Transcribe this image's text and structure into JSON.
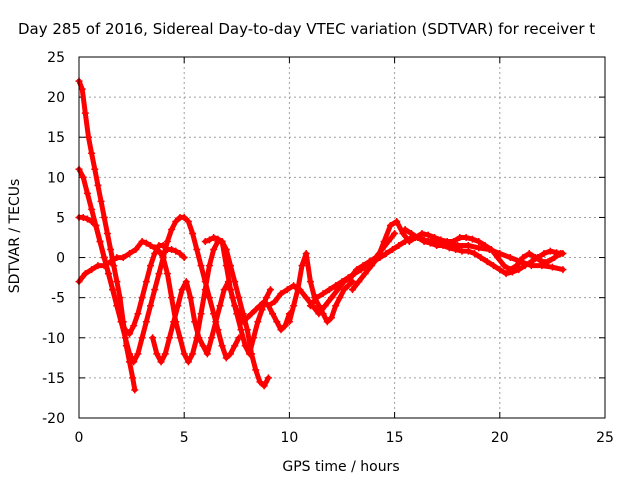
{
  "chart_data": {
    "type": "scatter",
    "title": "Day 285 of 2016, Sidereal Day-to-day VTEC variation (SDTVAR) for receiver t",
    "xlabel": "GPS time / hours",
    "ylabel": "SDTVAR / TECUs",
    "xlim": [
      0,
      25
    ],
    "ylim": [
      -20,
      25
    ],
    "x_ticks": [
      0,
      5,
      10,
      15,
      20,
      25
    ],
    "y_ticks": [
      -20,
      -15,
      -10,
      -5,
      0,
      5,
      10,
      15,
      20,
      25
    ],
    "grid": true,
    "marker": "+",
    "color": "#ff0000",
    "series": [
      {
        "x": [
          0.0,
          0.15,
          0.3,
          0.45,
          0.6,
          0.75,
          0.9,
          1.05,
          1.2,
          1.35,
          1.5,
          1.65,
          1.8,
          1.95,
          2.1,
          2.25,
          2.4,
          2.55,
          2.65
        ],
        "y": [
          22,
          21,
          18,
          15,
          13,
          11,
          9,
          7,
          5,
          3,
          1,
          -1,
          -3,
          -5,
          -8,
          -11,
          -13,
          -15,
          -16.5
        ]
      },
      {
        "x": [
          0.0,
          0.2,
          0.4,
          0.6,
          0.8,
          1.0,
          1.2,
          1.4,
          1.6,
          1.8,
          2.0,
          2.2,
          2.4,
          2.6,
          2.8,
          3.0,
          3.2,
          3.4,
          3.6,
          3.8,
          4.0,
          4.2,
          4.4,
          4.6,
          4.8,
          5.0
        ],
        "y": [
          11,
          10,
          8,
          6,
          4,
          2,
          0,
          -2,
          -4,
          -6,
          -8,
          -9,
          -9.5,
          -8.5,
          -7,
          -5,
          -3,
          -1,
          0.5,
          1.5,
          1.5,
          1,
          1,
          0.8,
          0.5,
          0
        ]
      },
      {
        "x": [
          0.0,
          0.2,
          0.4,
          0.6,
          0.8,
          1.0,
          1.2,
          1.4,
          1.6,
          1.8,
          2.0,
          2.2,
          2.4,
          2.6,
          2.8,
          3.0,
          3.2,
          3.4,
          3.6,
          3.8,
          4.0,
          4.2,
          4.4,
          4.6,
          4.8,
          5.0,
          5.2,
          5.4,
          5.6,
          5.8,
          6.0,
          6.2,
          6.4,
          6.6,
          6.8,
          7.0,
          7.2,
          7.4,
          7.6
        ],
        "y": [
          5,
          5,
          4.8,
          4.5,
          4,
          2,
          0,
          -2,
          -4,
          -6,
          -8,
          -10,
          -12,
          -13,
          -12,
          -10,
          -8,
          -6,
          -4,
          -2,
          0,
          2,
          3.5,
          4.5,
          5,
          5,
          4.5,
          3,
          1,
          -1,
          -3,
          -5,
          -7,
          -9,
          -11,
          -12.5,
          -12,
          -11,
          -10
        ]
      },
      {
        "x": [
          0.0,
          0.3,
          0.6,
          0.9,
          1.2,
          1.5,
          1.8,
          2.1,
          2.4,
          2.7,
          3.0,
          3.2,
          3.4,
          3.6,
          3.8,
          4.0,
          4.2,
          4.4,
          4.6,
          4.8,
          5.0,
          5.2,
          5.4,
          5.6,
          5.8,
          6.0,
          6.2,
          6.4,
          6.6,
          6.8,
          7.0,
          7.2,
          7.4,
          7.6,
          7.8,
          8.0,
          8.2,
          8.4,
          8.6,
          8.8,
          9.0
        ],
        "y": [
          -3,
          -2,
          -1.5,
          -1,
          -1,
          -0.5,
          0,
          0,
          0.5,
          1,
          2,
          1.8,
          1.5,
          1.2,
          0.8,
          0,
          -2,
          -5,
          -8,
          -10,
          -12,
          -13,
          -12,
          -10,
          -7,
          -4,
          -1,
          1,
          2,
          2,
          1,
          -1,
          -3,
          -5,
          -7,
          -9,
          -12,
          -14,
          -15.5,
          -16,
          -15
        ]
      },
      {
        "x": [
          3.5,
          3.7,
          3.9,
          4.1,
          4.3,
          4.5,
          4.7,
          4.9,
          5.1,
          5.3,
          5.5,
          5.7,
          5.9,
          6.1,
          6.3,
          6.5,
          6.7,
          6.9,
          7.1,
          7.3,
          7.5,
          7.7,
          7.9,
          8.1,
          8.3,
          8.5,
          8.7,
          8.9,
          9.1
        ],
        "y": [
          -10,
          -12,
          -13,
          -12,
          -10,
          -8,
          -6,
          -4,
          -3,
          -5,
          -8,
          -10,
          -11,
          -12,
          -10,
          -8,
          -6,
          -4,
          -3,
          -5,
          -7,
          -9,
          -11,
          -12,
          -10,
          -8,
          -6.5,
          -5,
          -4
        ]
      },
      {
        "x": [
          6.0,
          6.2,
          6.4,
          6.6,
          6.8,
          7.0,
          7.2,
          7.4,
          7.6,
          7.8,
          8.0,
          8.2,
          8.4,
          8.6,
          8.8,
          9.0,
          9.2,
          9.4,
          9.6,
          9.8,
          10.0
        ],
        "y": [
          2,
          2.2,
          2.5,
          2.3,
          2,
          -1,
          -4,
          -6,
          -7,
          -8,
          -7.5,
          -7,
          -6.5,
          -6,
          -5.5,
          -6,
          -7,
          -8,
          -9,
          -8.5,
          -7
        ]
      },
      {
        "x": [
          9.0,
          9.3,
          9.6,
          9.9,
          10.2,
          10.5,
          10.8,
          11.1,
          11.4,
          11.7,
          12.0,
          12.3,
          12.6,
          12.9,
          13.2,
          13.5,
          13.8,
          14.1,
          14.4,
          14.7,
          15.0
        ],
        "y": [
          -6,
          -5.5,
          -4.5,
          -4,
          -3.5,
          -4,
          -5,
          -6,
          -7,
          -6,
          -5,
          -4,
          -3,
          -2.5,
          -1.5,
          -1,
          -0.5,
          0,
          1,
          2,
          3
        ]
      },
      {
        "x": [
          10.0,
          10.2,
          10.4,
          10.6,
          10.8,
          11.0,
          11.2,
          11.4,
          11.6,
          11.8,
          12.0,
          12.2,
          12.4,
          12.6,
          12.8,
          13.0
        ],
        "y": [
          -8,
          -6,
          -4,
          -1,
          0.5,
          -3,
          -5,
          -6,
          -7,
          -8,
          -7.5,
          -6,
          -5,
          -4,
          -3.5,
          -3
        ]
      },
      {
        "x": [
          11.0,
          11.3,
          11.6,
          11.9,
          12.2,
          12.5,
          12.8,
          13.1,
          13.4,
          13.7,
          14.0,
          14.3,
          14.6,
          14.9,
          15.2,
          15.5,
          15.8,
          16.1,
          16.4,
          16.7,
          17.0,
          17.5,
          18.0,
          18.5,
          19.0,
          19.5,
          20.0,
          20.5,
          21.0,
          21.5,
          22.0,
          22.5,
          23.0
        ],
        "y": [
          -6,
          -5,
          -4.5,
          -4,
          -3.5,
          -3,
          -2.5,
          -2,
          -1.5,
          -1,
          -0.5,
          0,
          0.5,
          1,
          1.5,
          2,
          2.5,
          2.5,
          2.2,
          2,
          2,
          1.8,
          1.5,
          1.5,
          1.2,
          1,
          0.5,
          0,
          -0.5,
          -1,
          -1,
          -1.2,
          -1.5
        ]
      },
      {
        "x": [
          13.0,
          13.3,
          13.6,
          13.9,
          14.2,
          14.5,
          14.8,
          15.1,
          15.4,
          15.7,
          16.0,
          16.3,
          16.6,
          16.9,
          17.2,
          17.5,
          17.8,
          18.1,
          18.4,
          18.7,
          19.0,
          19.3,
          19.6,
          19.9,
          20.2,
          20.5,
          20.8,
          21.1,
          21.4,
          21.7,
          22.0,
          22.3,
          22.6,
          22.9
        ],
        "y": [
          -4,
          -3,
          -2,
          -1,
          0,
          2,
          4,
          4.5,
          3,
          2,
          2.5,
          3,
          2.8,
          2.5,
          2.2,
          2,
          2,
          2.5,
          2.5,
          2.3,
          2,
          1.5,
          1,
          0,
          -1,
          -1.5,
          -1,
          0,
          0.5,
          0,
          -0.5,
          -0.5,
          0,
          0.5
        ]
      },
      {
        "x": [
          15.5,
          15.8,
          16.1,
          16.4,
          16.7,
          17.0,
          17.3,
          17.6,
          17.9,
          18.2,
          18.5,
          18.8,
          19.1,
          19.4,
          19.7,
          20.0,
          20.3,
          20.6,
          20.9,
          21.2,
          21.5,
          21.8,
          22.1,
          22.4,
          22.7,
          23.0
        ],
        "y": [
          3.5,
          3,
          2.5,
          2,
          1.8,
          1.5,
          1.5,
          1.2,
          1,
          0.8,
          0.8,
          0.5,
          0,
          -0.5,
          -1,
          -1.5,
          -2,
          -1.8,
          -1.5,
          -1,
          -0.5,
          0,
          0.5,
          0.8,
          0.6,
          0.5
        ]
      }
    ]
  }
}
